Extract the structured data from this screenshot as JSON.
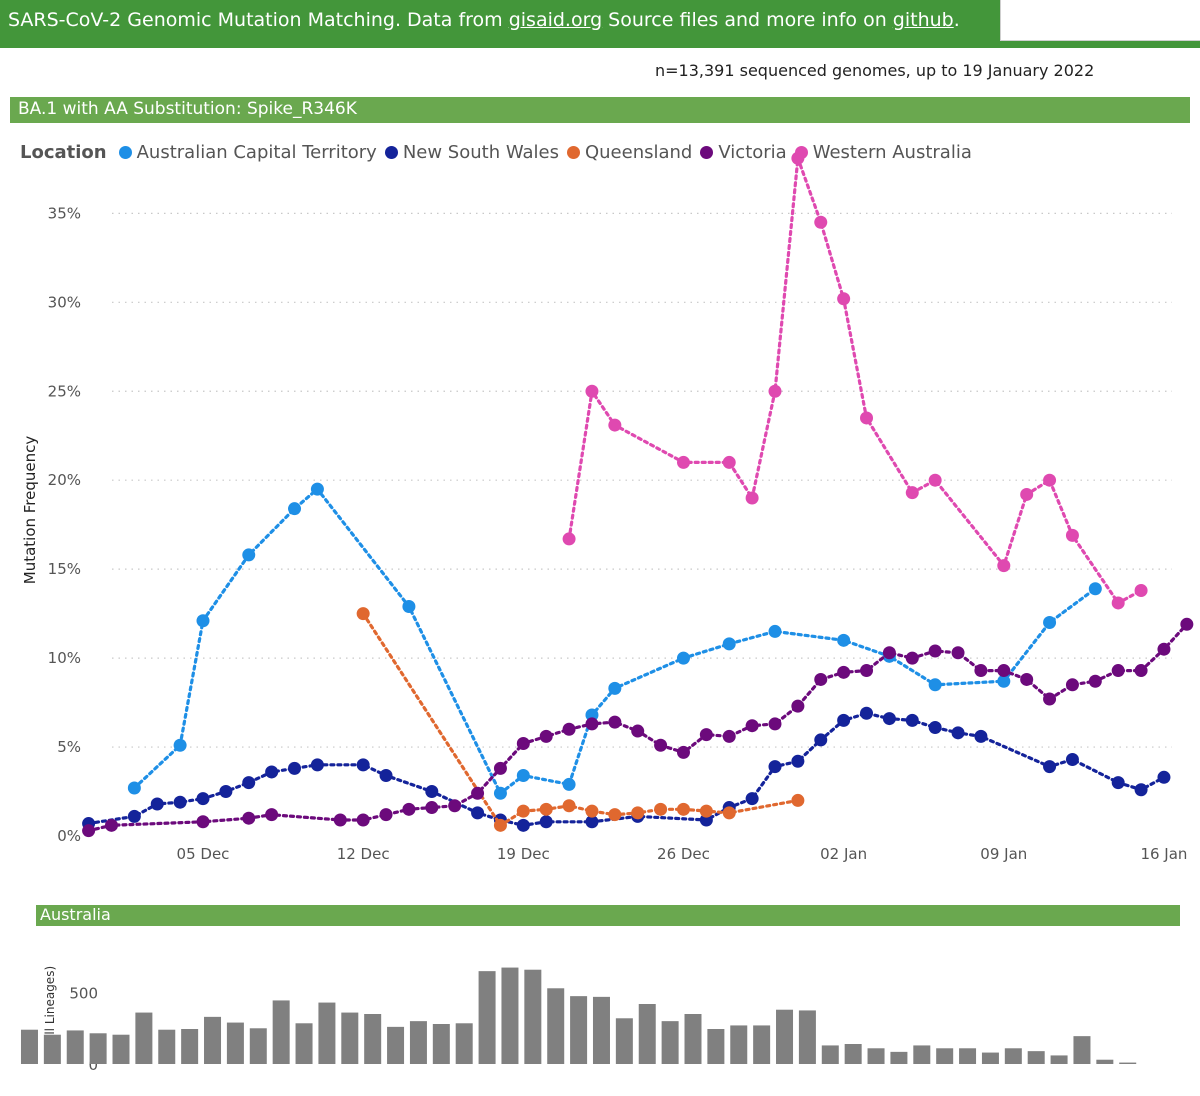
{
  "header": {
    "prefix": "SARS-CoV-2 Genomic Mutation Matching. Data from ",
    "link1": "gisaid.org",
    "middle": " Source files and more info on ",
    "link2": "github",
    "suffix": "."
  },
  "n_info": "n=13,391 sequenced genomes, up to 19 January 2022",
  "section_title": "BA.1 with AA Substitution: Spike_R346K",
  "bottom_section_title": "Australia",
  "colors": {
    "header_bg": "#43963a",
    "section_bg": "#6aa84f",
    "act": "#1e8fe6",
    "nsw": "#14239a",
    "qld": "#e0682f",
    "vic": "#6c0a7c",
    "wa": "#df49b0",
    "bars": "#808080"
  },
  "chart_data": [
    {
      "type": "line",
      "title": "",
      "legend_title": "Location",
      "legend_position": "top-left",
      "xlabel": "",
      "ylabel": "Mutation Frequency",
      "ylim": [
        0,
        38
      ],
      "yticks": [
        0,
        5,
        10,
        15,
        20,
        25,
        30,
        35
      ],
      "ytick_labels": [
        "0%",
        "5%",
        "10%",
        "15%",
        "20%",
        "25%",
        "30%",
        "35%"
      ],
      "xticks": [
        "2021-12-05",
        "2021-12-12",
        "2021-12-19",
        "2021-12-26",
        "2022-01-02",
        "2022-01-09",
        "2022-01-16"
      ],
      "xtick_labels": [
        "05 Dec",
        "12 Dec",
        "19 Dec",
        "26 Dec",
        "02 Jan",
        "09 Jan",
        "16 Jan"
      ],
      "grid": true,
      "series": [
        {
          "name": "Australian Capital Territory",
          "color_key": "act",
          "points": [
            [
              "2021-12-02",
              2.7
            ],
            [
              "2021-12-04",
              5.1
            ],
            [
              "2021-12-05",
              12.1
            ],
            [
              "2021-12-07",
              15.8
            ],
            [
              "2021-12-09",
              18.4
            ],
            [
              "2021-12-10",
              19.5
            ],
            [
              "2021-12-14",
              12.9
            ],
            [
              "2021-12-18",
              2.4
            ],
            [
              "2021-12-19",
              3.4
            ],
            [
              "2021-12-21",
              2.9
            ],
            [
              "2021-12-22",
              6.8
            ],
            [
              "2021-12-23",
              8.3
            ],
            [
              "2021-12-26",
              10.0
            ],
            [
              "2021-12-28",
              10.8
            ],
            [
              "2021-12-30",
              11.5
            ],
            [
              "2022-01-02",
              11.0
            ],
            [
              "2022-01-04",
              10.1
            ],
            [
              "2022-01-06",
              8.5
            ],
            [
              "2022-01-09",
              8.7
            ],
            [
              "2022-01-11",
              12.0
            ],
            [
              "2022-01-13",
              13.9
            ]
          ]
        },
        {
          "name": "New South Wales",
          "color_key": "nsw",
          "points": [
            [
              "2021-11-30",
              0.7
            ],
            [
              "2021-12-02",
              1.1
            ],
            [
              "2021-12-03",
              1.8
            ],
            [
              "2021-12-04",
              1.9
            ],
            [
              "2021-12-05",
              2.1
            ],
            [
              "2021-12-06",
              2.5
            ],
            [
              "2021-12-07",
              3.0
            ],
            [
              "2021-12-08",
              3.6
            ],
            [
              "2021-12-09",
              3.8
            ],
            [
              "2021-12-10",
              4.0
            ],
            [
              "2021-12-12",
              4.0
            ],
            [
              "2021-12-13",
              3.4
            ],
            [
              "2021-12-15",
              2.5
            ],
            [
              "2021-12-17",
              1.3
            ],
            [
              "2021-12-18",
              0.9
            ],
            [
              "2021-12-19",
              0.6
            ],
            [
              "2021-12-20",
              0.8
            ],
            [
              "2021-12-22",
              0.8
            ],
            [
              "2021-12-24",
              1.1
            ],
            [
              "2021-12-27",
              0.9
            ],
            [
              "2021-12-28",
              1.6
            ],
            [
              "2021-12-29",
              2.1
            ],
            [
              "2021-12-30",
              3.9
            ],
            [
              "2021-12-31",
              4.2
            ],
            [
              "2022-01-01",
              5.4
            ],
            [
              "2022-01-02",
              6.5
            ],
            [
              "2022-01-03",
              6.9
            ],
            [
              "2022-01-04",
              6.6
            ],
            [
              "2022-01-05",
              6.5
            ],
            [
              "2022-01-06",
              6.1
            ],
            [
              "2022-01-07",
              5.8
            ],
            [
              "2022-01-08",
              5.6
            ],
            [
              "2022-01-11",
              3.9
            ],
            [
              "2022-01-12",
              4.3
            ],
            [
              "2022-01-14",
              3.0
            ],
            [
              "2022-01-15",
              2.6
            ],
            [
              "2022-01-16",
              3.3
            ]
          ]
        },
        {
          "name": "Queensland",
          "color_key": "qld",
          "points": [
            [
              "2021-12-12",
              12.5
            ],
            [
              "2021-12-18",
              0.6
            ],
            [
              "2021-12-19",
              1.4
            ],
            [
              "2021-12-20",
              1.5
            ],
            [
              "2021-12-21",
              1.7
            ],
            [
              "2021-12-22",
              1.4
            ],
            [
              "2021-12-23",
              1.2
            ],
            [
              "2021-12-24",
              1.3
            ],
            [
              "2021-12-25",
              1.5
            ],
            [
              "2021-12-26",
              1.5
            ],
            [
              "2021-12-27",
              1.4
            ],
            [
              "2021-12-28",
              1.3
            ],
            [
              "2021-12-31",
              2.0
            ]
          ]
        },
        {
          "name": "Victoria",
          "color_key": "vic",
          "points": [
            [
              "2021-11-30",
              0.3
            ],
            [
              "2021-12-01",
              0.6
            ],
            [
              "2021-12-05",
              0.8
            ],
            [
              "2021-12-07",
              1.0
            ],
            [
              "2021-12-08",
              1.2
            ],
            [
              "2021-12-11",
              0.9
            ],
            [
              "2021-12-12",
              0.9
            ],
            [
              "2021-12-13",
              1.2
            ],
            [
              "2021-12-14",
              1.5
            ],
            [
              "2021-12-15",
              1.6
            ],
            [
              "2021-12-16",
              1.7
            ],
            [
              "2021-12-17",
              2.4
            ],
            [
              "2021-12-18",
              3.8
            ],
            [
              "2021-12-19",
              5.2
            ],
            [
              "2021-12-20",
              5.6
            ],
            [
              "2021-12-21",
              6.0
            ],
            [
              "2021-12-22",
              6.3
            ],
            [
              "2021-12-23",
              6.4
            ],
            [
              "2021-12-24",
              5.9
            ],
            [
              "2021-12-25",
              5.1
            ],
            [
              "2021-12-26",
              4.7
            ],
            [
              "2021-12-27",
              5.7
            ],
            [
              "2021-12-28",
              5.6
            ],
            [
              "2021-12-29",
              6.2
            ],
            [
              "2021-12-30",
              6.3
            ],
            [
              "2021-12-31",
              7.3
            ],
            [
              "2022-01-01",
              8.8
            ],
            [
              "2022-01-02",
              9.2
            ],
            [
              "2022-01-03",
              9.3
            ],
            [
              "2022-01-04",
              10.3
            ],
            [
              "2022-01-05",
              10.0
            ],
            [
              "2022-01-06",
              10.4
            ],
            [
              "2022-01-07",
              10.3
            ],
            [
              "2022-01-08",
              9.3
            ],
            [
              "2022-01-09",
              9.3
            ],
            [
              "2022-01-10",
              8.8
            ],
            [
              "2022-01-11",
              7.7
            ],
            [
              "2022-01-12",
              8.5
            ],
            [
              "2022-01-13",
              8.7
            ],
            [
              "2022-01-14",
              9.3
            ],
            [
              "2022-01-15",
              9.3
            ],
            [
              "2022-01-16",
              10.5
            ],
            [
              "2022-01-17",
              11.9
            ]
          ]
        },
        {
          "name": "Western Australia",
          "color_key": "wa",
          "points": [
            [
              "2021-12-21",
              16.7
            ],
            [
              "2021-12-22",
              25.0
            ],
            [
              "2021-12-23",
              23.1
            ],
            [
              "2021-12-26",
              21.0
            ],
            [
              "2021-12-28",
              21.0
            ],
            [
              "2021-12-29",
              19.0
            ],
            [
              "2021-12-30",
              25.0
            ],
            [
              "2021-12-31",
              38.1
            ],
            [
              "2022-01-01",
              34.5
            ],
            [
              "2022-01-02",
              30.2
            ],
            [
              "2022-01-03",
              23.5
            ],
            [
              "2022-01-05",
              19.3
            ],
            [
              "2022-01-06",
              20.0
            ],
            [
              "2022-01-09",
              15.2
            ],
            [
              "2022-01-10",
              19.2
            ],
            [
              "2022-01-11",
              20.0
            ],
            [
              "2022-01-12",
              16.9
            ],
            [
              "2022-01-14",
              13.1
            ],
            [
              "2022-01-15",
              13.8
            ]
          ]
        }
      ]
    },
    {
      "type": "bar",
      "title": "",
      "xlabel": "",
      "ylabel": "n (all Lineages)",
      "ylim": [
        0,
        700
      ],
      "yticks": [
        0,
        500
      ],
      "ytick_labels": [
        "0",
        "500"
      ],
      "categories": [
        "2021-12-01",
        "2021-12-02",
        "2021-12-03",
        "2021-12-04",
        "2021-12-05",
        "2021-12-06",
        "2021-12-07",
        "2021-12-08",
        "2021-12-09",
        "2021-12-10",
        "2021-12-11",
        "2021-12-12",
        "2021-12-13",
        "2021-12-14",
        "2021-12-15",
        "2021-12-16",
        "2021-12-17",
        "2021-12-18",
        "2021-12-19",
        "2021-12-20",
        "2021-12-21",
        "2021-12-22",
        "2021-12-23",
        "2021-12-24",
        "2021-12-25",
        "2021-12-26",
        "2021-12-27",
        "2021-12-28",
        "2021-12-29",
        "2021-12-30",
        "2021-12-31",
        "2022-01-01",
        "2022-01-02",
        "2022-01-03",
        "2022-01-04",
        "2022-01-05",
        "2022-01-06",
        "2022-01-07",
        "2022-01-08",
        "2022-01-09",
        "2022-01-10",
        "2022-01-11",
        "2022-01-12",
        "2022-01-13",
        "2022-01-14",
        "2022-01-15",
        "2022-01-16",
        "2022-01-17",
        "2022-01-18"
      ],
      "values": [
        240,
        205,
        235,
        215,
        205,
        360,
        240,
        245,
        330,
        290,
        250,
        445,
        285,
        430,
        360,
        350,
        260,
        300,
        280,
        285,
        650,
        675,
        660,
        530,
        475,
        470,
        320,
        420,
        300,
        350,
        245,
        270,
        270,
        380,
        375,
        130,
        140,
        110,
        85,
        130,
        110,
        110,
        80,
        110,
        90,
        60,
        195,
        30,
        10
      ]
    }
  ]
}
